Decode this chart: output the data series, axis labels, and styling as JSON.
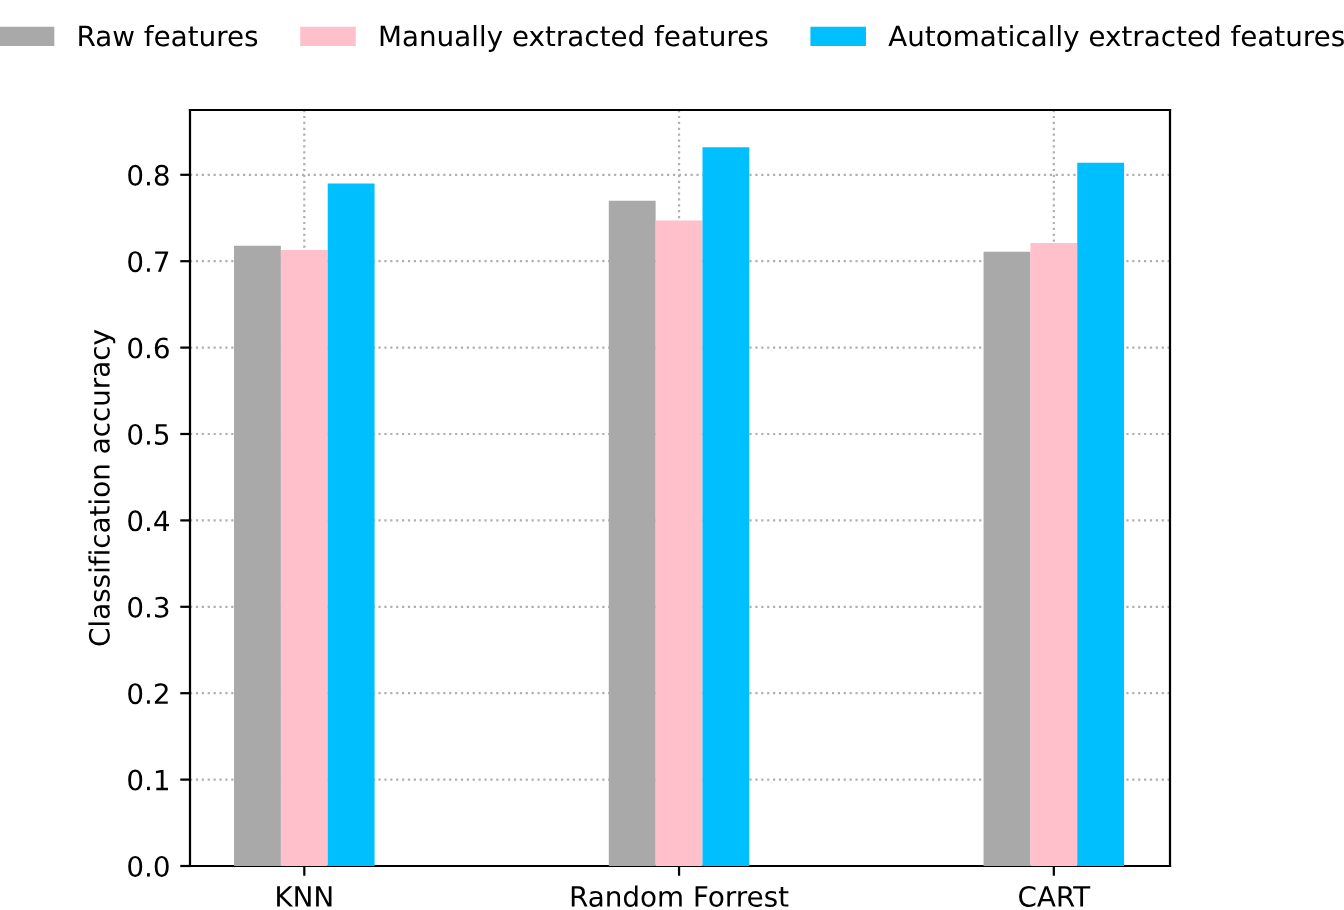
{
  "chart_data": {
    "type": "bar",
    "ylabel": "Classification accuracy",
    "categories": [
      "KNN",
      "Random Forrest",
      "CART"
    ],
    "series": [
      {
        "name": "Raw features",
        "color": "#a9a9a9",
        "values": [
          0.718,
          0.77,
          0.711
        ]
      },
      {
        "name": "Manually extracted features",
        "color": "#ffc0cb",
        "values": [
          0.713,
          0.747,
          0.721
        ]
      },
      {
        "name": "Automatically extracted features",
        "color": "#00bfff",
        "values": [
          0.79,
          0.832,
          0.814
        ]
      }
    ],
    "ylim": [
      0,
      0.875
    ],
    "yticks": [
      {
        "value": 0,
        "label": "0.0"
      },
      0.1,
      0.2,
      0.3,
      0.4,
      0.5,
      0.6,
      0.7,
      0.8
    ],
    "grid": true,
    "legend": "top"
  }
}
